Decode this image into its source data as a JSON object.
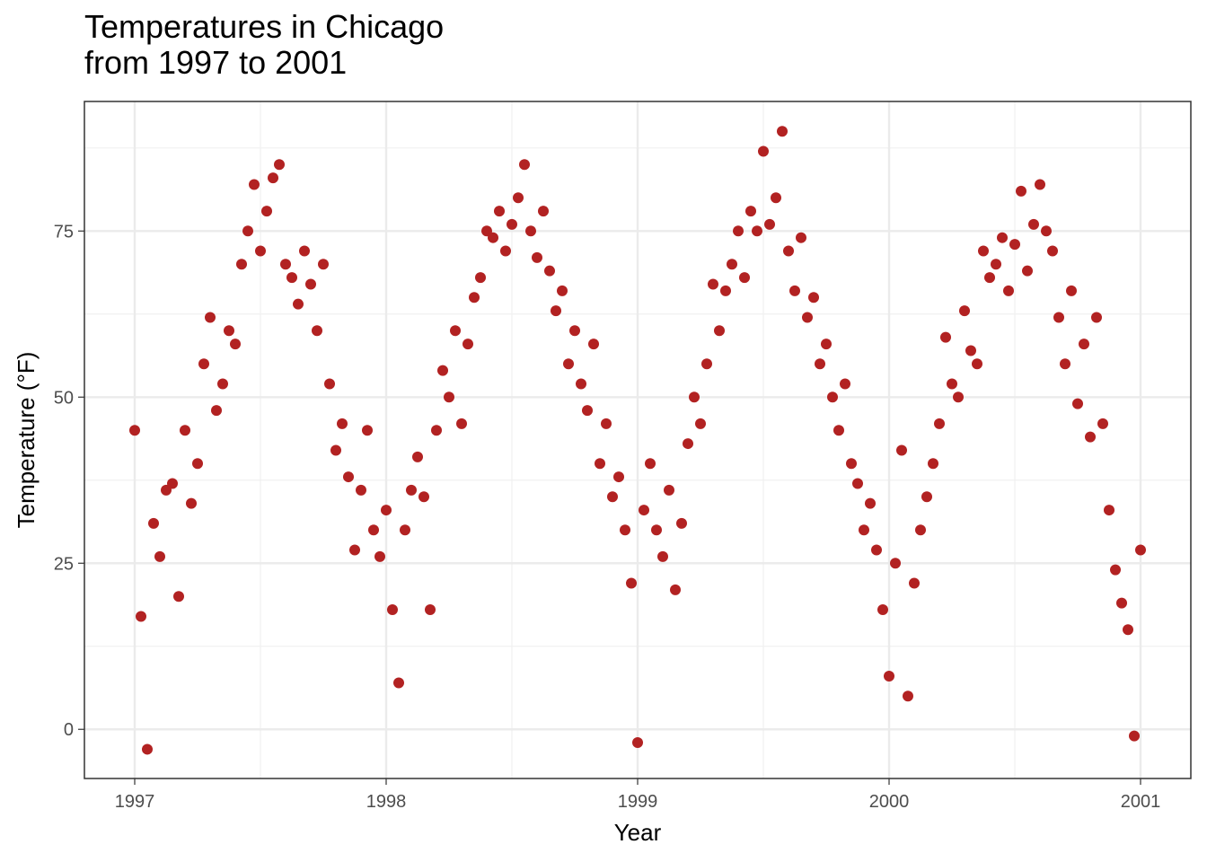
{
  "chart_data": {
    "type": "scatter",
    "title": "Temperatures in Chicago\nfrom 1997 to 2001",
    "x_label": "Year",
    "y_label": "Temperature (°F)",
    "color": "#b22222",
    "grid": true,
    "xlim": [
      1996.8,
      2001.2
    ],
    "ylim": [
      -7.4,
      94.5
    ],
    "xticks": [
      1997,
      1998,
      1999,
      2000,
      2001
    ],
    "yticks": [
      0,
      25,
      50,
      75
    ],
    "x": [
      1997,
      1997.025,
      1997.05,
      1997.075,
      1997.1,
      1997.125,
      1997.15,
      1997.175,
      1997.2,
      1997.225,
      1997.25,
      1997.275,
      1997.3,
      1997.325,
      1997.35,
      1997.375,
      1997.4,
      1997.425,
      1997.45,
      1997.475,
      1997.5,
      1997.525,
      1997.55,
      1997.575,
      1997.6,
      1997.625,
      1997.65,
      1997.675,
      1997.7,
      1997.725,
      1997.75,
      1997.775,
      1997.8,
      1997.825,
      1997.85,
      1997.875,
      1997.9,
      1997.925,
      1997.95,
      1997.975,
      1998,
      1998.025,
      1998.05,
      1998.075,
      1998.1,
      1998.125,
      1998.15,
      1998.175,
      1998.2,
      1998.225,
      1998.25,
      1998.275,
      1998.3,
      1998.325,
      1998.35,
      1998.375,
      1998.4,
      1998.425,
      1998.45,
      1998.475,
      1998.5,
      1998.525,
      1998.55,
      1998.575,
      1998.6,
      1998.625,
      1998.65,
      1998.675,
      1998.7,
      1998.725,
      1998.75,
      1998.775,
      1998.8,
      1998.825,
      1998.85,
      1998.875,
      1998.9,
      1998.925,
      1998.95,
      1998.975,
      1999,
      1999.025,
      1999.05,
      1999.075,
      1999.1,
      1999.125,
      1999.15,
      1999.175,
      1999.2,
      1999.225,
      1999.25,
      1999.275,
      1999.3,
      1999.325,
      1999.35,
      1999.375,
      1999.4,
      1999.425,
      1999.45,
      1999.475,
      1999.5,
      1999.525,
      1999.55,
      1999.575,
      1999.6,
      1999.625,
      1999.65,
      1999.675,
      1999.7,
      1999.725,
      1999.75,
      1999.775,
      1999.8,
      1999.825,
      1999.85,
      1999.875,
      1999.9,
      1999.925,
      1999.95,
      1999.975,
      2000,
      2000.025,
      2000.05,
      2000.075,
      2000.1,
      2000.125,
      2000.15,
      2000.175,
      2000.2,
      2000.225,
      2000.25,
      2000.275,
      2000.3,
      2000.325,
      2000.35,
      2000.375,
      2000.4,
      2000.425,
      2000.45,
      2000.475,
      2000.5,
      2000.525,
      2000.55,
      2000.575,
      2000.6,
      2000.625,
      2000.65,
      2000.675,
      2000.7,
      2000.725,
      2000.75,
      2000.775,
      2000.8,
      2000.825,
      2000.85,
      2000.875,
      2000.9,
      2000.925,
      2000.95,
      2000.975,
      2001
    ],
    "values": [
      45,
      17,
      -3,
      31,
      26,
      36,
      37,
      20,
      45,
      34,
      40,
      55,
      62,
      48,
      52,
      60,
      58,
      70,
      75,
      82,
      72,
      78,
      83,
      85,
      70,
      68,
      64,
      72,
      67,
      60,
      70,
      52,
      42,
      46,
      38,
      27,
      36,
      45,
      30,
      26,
      33,
      18,
      7,
      30,
      36,
      41,
      35,
      18,
      45,
      54,
      50,
      60,
      46,
      58,
      65,
      68,
      75,
      74,
      78,
      72,
      76,
      80,
      85,
      75,
      71,
      78,
      69,
      63,
      66,
      55,
      60,
      52,
      48,
      58,
      40,
      46,
      35,
      38,
      30,
      22,
      -2,
      33,
      40,
      30,
      26,
      36,
      21,
      31,
      43,
      50,
      46,
      55,
      67,
      60,
      66,
      70,
      75,
      68,
      78,
      75,
      87,
      76,
      80,
      90,
      72,
      66,
      74,
      62,
      65,
      55,
      58,
      50,
      45,
      52,
      40,
      37,
      30,
      34,
      27,
      18,
      8,
      25,
      42,
      5,
      22,
      30,
      35,
      40,
      46,
      59,
      52,
      50,
      63,
      57,
      55,
      72,
      68,
      70,
      74,
      66,
      73,
      81,
      69,
      76,
      82,
      75,
      72,
      62,
      55,
      66,
      49,
      58,
      44,
      62,
      46,
      33,
      24,
      19,
      15,
      -1,
      27
    ]
  }
}
